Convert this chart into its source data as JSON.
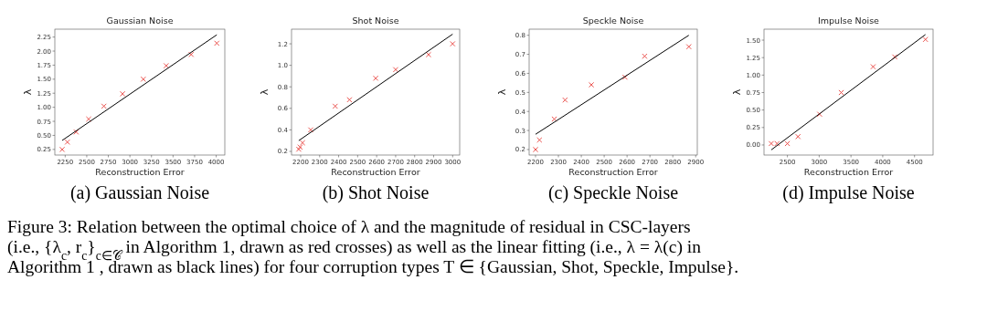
{
  "chart_data": [
    {
      "type": "scatter",
      "title": "Gaussian Noise",
      "xlabel": "Reconstruction Error",
      "ylabel": "λ",
      "xlim": [
        2130,
        4100
      ],
      "xticks": [
        2250,
        2500,
        2750,
        3000,
        3250,
        3500,
        3750,
        4000
      ],
      "ylim": [
        0.15,
        2.39
      ],
      "yticks": [
        0.25,
        {
          "value": 0.5,
          "label": "0.50"
        },
        0.75,
        {
          "value": 1,
          "label": "1.00"
        },
        1.25,
        {
          "value": 1.5,
          "label": "1.50"
        },
        1.75,
        {
          "value": 2,
          "label": "2.00"
        },
        2.25
      ],
      "x": [
        2215,
        2275,
        2377,
        2522,
        2699,
        2915,
        3155,
        3420,
        3710,
        4007
      ],
      "series": [
        {
          "marker": "cross",
          "color": "#e8413c",
          "values": [
            0.25,
            0.38,
            0.56,
            0.79,
            1.02,
            1.24,
            1.5,
            1.74,
            1.94,
            2.14
          ]
        },
        {
          "type": "line",
          "color": "#000000",
          "x": [
            2215,
            4007
          ],
          "values": [
            0.41,
            2.29
          ]
        }
      ],
      "annotations": [
        "(a) Gaussian Noise"
      ]
    },
    {
      "type": "scatter",
      "title": "Shot Noise",
      "xlabel": "Reconstruction Error",
      "ylabel": "λ",
      "xlim": [
        2152,
        3037
      ],
      "xticks": [
        2200,
        2300,
        2400,
        2500,
        2600,
        2700,
        2800,
        2900,
        3000
      ],
      "ylim": [
        0.166,
        1.336
      ],
      "yticks": [
        0.2,
        0.4,
        0.6,
        0.8,
        {
          "value": 1,
          "label": "1.0"
        },
        1.2
      ],
      "x": [
        2190,
        2197,
        2210,
        2253,
        2382,
        2457,
        2595,
        2700,
        2873,
        3000
      ],
      "series": [
        {
          "marker": "cross",
          "color": "#e8413c",
          "values": [
            0.22,
            0.24,
            0.28,
            0.4,
            0.62,
            0.68,
            0.88,
            0.96,
            1.1,
            1.2
          ]
        },
        {
          "type": "line",
          "color": "#000000",
          "x": [
            2190,
            3000
          ],
          "values": [
            0.3,
            1.29
          ]
        }
      ],
      "annotations": [
        "(b) Shot Noise"
      ]
    },
    {
      "type": "scatter",
      "title": "Speckle Noise",
      "xlabel": "Reconstruction Error",
      "ylabel": "λ",
      "xlim": [
        2172,
        2907
      ],
      "xticks": [
        2200,
        2300,
        2400,
        2500,
        2600,
        2700,
        2800,
        2900
      ],
      "ylim": [
        0.171,
        0.832
      ],
      "yticks": [
        0.2,
        0.3,
        0.4,
        0.5,
        0.6,
        0.7,
        0.8
      ],
      "x": [
        2200,
        2217,
        2282,
        2329,
        2444,
        2591,
        2677,
        2870
      ],
      "series": [
        {
          "marker": "cross",
          "color": "#e8413c",
          "values": [
            0.2,
            0.25,
            0.36,
            0.46,
            0.54,
            0.58,
            0.69,
            0.74
          ]
        },
        {
          "type": "line",
          "color": "#000000",
          "x": [
            2200,
            2870
          ],
          "values": [
            0.28,
            0.8
          ]
        }
      ],
      "annotations": [
        "(c) Speckle Noise"
      ]
    },
    {
      "type": "scatter",
      "title": "Impulse Noise",
      "xlabel": "Reconstruction Error",
      "ylabel": "λ",
      "xlim": [
        2132,
        4792
      ],
      "xticks": [
        2500,
        3000,
        3500,
        4000,
        4500
      ],
      "ylim": [
        -0.144,
        1.657
      ],
      "yticks": [
        {
          "value": 0,
          "label": "0.00"
        },
        0.25,
        {
          "value": 0.5,
          "label": "0.50"
        },
        0.75,
        {
          "value": 1,
          "label": "1.00"
        },
        1.25,
        {
          "value": 1.5,
          "label": "1.50"
        }
      ],
      "x": [
        2246,
        2337,
        2500,
        2667,
        3007,
        3347,
        3849,
        4189,
        4672
      ],
      "series": [
        {
          "marker": "cross",
          "color": "#e8413c",
          "values": [
            0.02,
            0.02,
            0.02,
            0.12,
            0.44,
            0.75,
            1.12,
            1.26,
            1.51
          ]
        },
        {
          "type": "line",
          "color": "#000000",
          "x": [
            2246,
            4672
          ],
          "values": [
            -0.07,
            1.58
          ]
        }
      ],
      "annotations": [
        "(d) Impulse Noise",
        "Figure 3:  Relation between the optimal choice of λ and the magnitude of residual in CSC-layers",
        "(i.e., {λ$_{c}$, r$_{c}$}$_{c∈𝒞}$ in Algorithm 1, drawn as red crosses) as well as the linear fitting (i.e., λ = λ(c) in",
        "Algorithm 1 , drawn as black lines) for four corruption types T ∈ {Gaussian, Shot, Speckle, Impulse}."
      ]
    }
  ]
}
